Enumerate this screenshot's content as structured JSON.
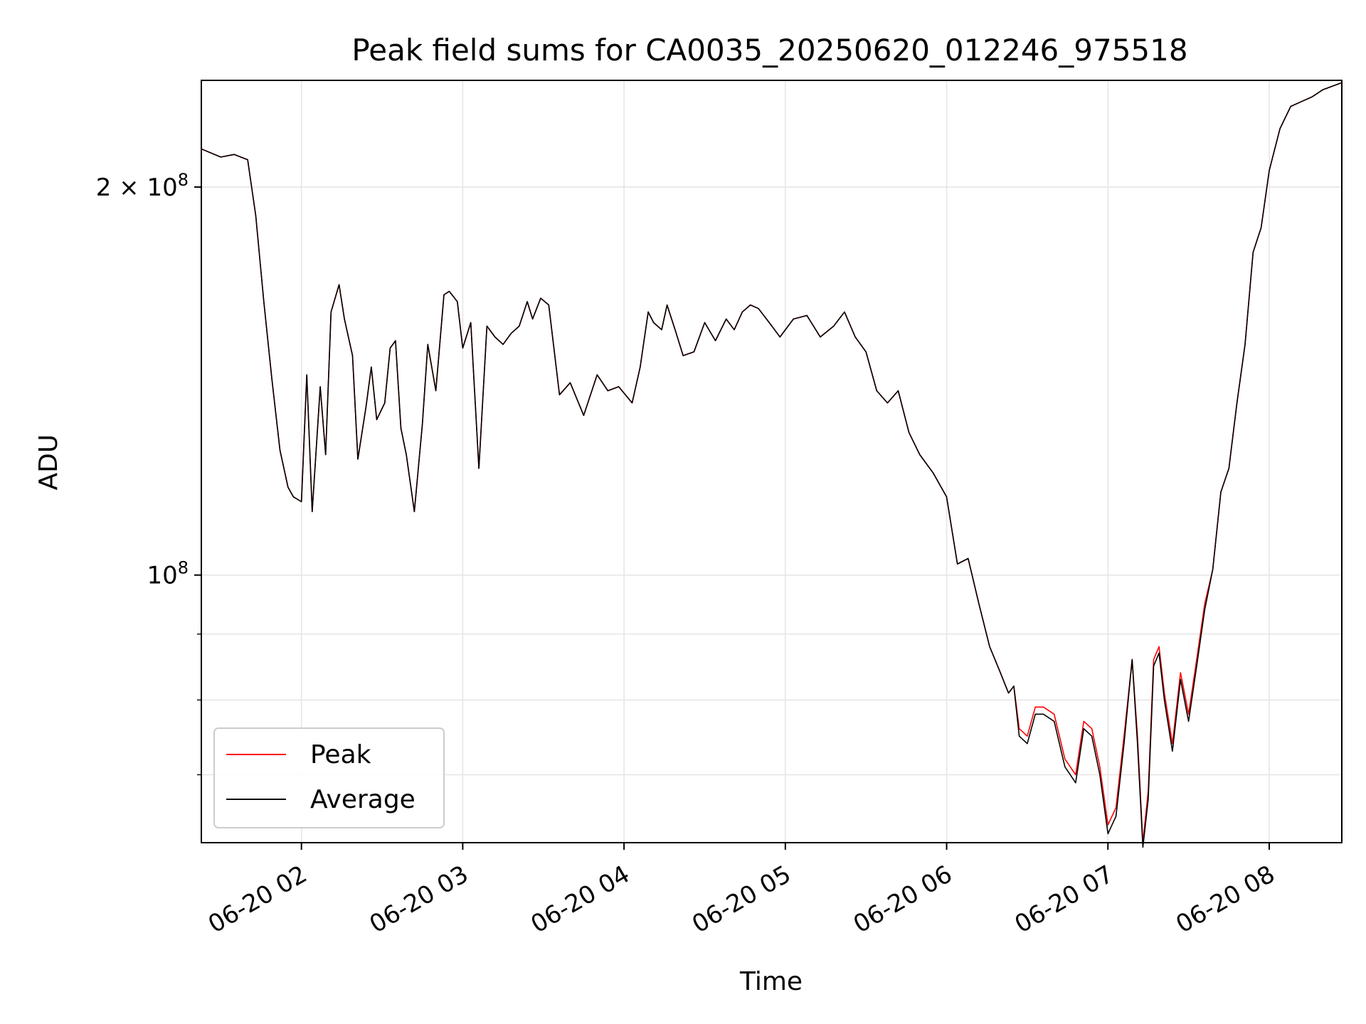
{
  "chart_data": {
    "type": "line",
    "title": "Peak field sums for CA0035_20250620_012246_975518",
    "xlabel": "Time",
    "ylabel": "ADU",
    "x_scale": "time",
    "y_scale": "log",
    "xlim": [
      "2025-06-20 01:22:46",
      "2025-06-20 08:27:00"
    ],
    "ylim": [
      62000000,
      242000000
    ],
    "x_ticks": [
      {
        "value": "2025-06-20 02:00",
        "label": "06-20 02"
      },
      {
        "value": "2025-06-20 03:00",
        "label": "06-20 03"
      },
      {
        "value": "2025-06-20 04:00",
        "label": "06-20 04"
      },
      {
        "value": "2025-06-20 05:00",
        "label": "06-20 05"
      },
      {
        "value": "2025-06-20 06:00",
        "label": "06-20 06"
      },
      {
        "value": "2025-06-20 07:00",
        "label": "06-20 07"
      },
      {
        "value": "2025-06-20 08:00",
        "label": "06-20 08"
      }
    ],
    "y_major_ticks": [
      {
        "value": 100000000,
        "label_base": "10",
        "label_exp": "8"
      },
      {
        "value": 200000000,
        "label_base": "2 × 10",
        "label_exp": "8"
      }
    ],
    "y_minor_ticks": [
      60000000,
      70000000,
      80000000,
      90000000
    ],
    "grid": true,
    "legend_position": "lower-left",
    "x": [
      "2025-06-20 01:23",
      "2025-06-20 01:30",
      "2025-06-20 01:35",
      "2025-06-20 01:40",
      "2025-06-20 01:43",
      "2025-06-20 01:46",
      "2025-06-20 01:49",
      "2025-06-20 01:52",
      "2025-06-20 01:55",
      "2025-06-20 01:57",
      "2025-06-20 02:00",
      "2025-06-20 02:02",
      "2025-06-20 02:04",
      "2025-06-20 02:07",
      "2025-06-20 02:09",
      "2025-06-20 02:11",
      "2025-06-20 02:14",
      "2025-06-20 02:16",
      "2025-06-20 02:19",
      "2025-06-20 02:21",
      "2025-06-20 02:24",
      "2025-06-20 02:26",
      "2025-06-20 02:28",
      "2025-06-20 02:31",
      "2025-06-20 02:33",
      "2025-06-20 02:35",
      "2025-06-20 02:37",
      "2025-06-20 02:39",
      "2025-06-20 02:42",
      "2025-06-20 02:45",
      "2025-06-20 02:47",
      "2025-06-20 02:50",
      "2025-06-20 02:53",
      "2025-06-20 02:55",
      "2025-06-20 02:58",
      "2025-06-20 03:00",
      "2025-06-20 03:03",
      "2025-06-20 03:06",
      "2025-06-20 03:09",
      "2025-06-20 03:12",
      "2025-06-20 03:15",
      "2025-06-20 03:18",
      "2025-06-20 03:21",
      "2025-06-20 03:24",
      "2025-06-20 03:26",
      "2025-06-20 03:29",
      "2025-06-20 03:32",
      "2025-06-20 03:36",
      "2025-06-20 03:40",
      "2025-06-20 03:45",
      "2025-06-20 03:50",
      "2025-06-20 03:54",
      "2025-06-20 03:58",
      "2025-06-20 04:03",
      "2025-06-20 04:06",
      "2025-06-20 04:09",
      "2025-06-20 04:11",
      "2025-06-20 04:14",
      "2025-06-20 04:16",
      "2025-06-20 04:19",
      "2025-06-20 04:22",
      "2025-06-20 04:26",
      "2025-06-20 04:30",
      "2025-06-20 04:34",
      "2025-06-20 04:38",
      "2025-06-20 04:41",
      "2025-06-20 04:44",
      "2025-06-20 04:47",
      "2025-06-20 04:50",
      "2025-06-20 04:54",
      "2025-06-20 04:58",
      "2025-06-20 05:03",
      "2025-06-20 05:08",
      "2025-06-20 05:13",
      "2025-06-20 05:18",
      "2025-06-20 05:22",
      "2025-06-20 05:26",
      "2025-06-20 05:30",
      "2025-06-20 05:34",
      "2025-06-20 05:38",
      "2025-06-20 05:42",
      "2025-06-20 05:46",
      "2025-06-20 05:50",
      "2025-06-20 05:55",
      "2025-06-20 06:00",
      "2025-06-20 06:04",
      "2025-06-20 06:08",
      "2025-06-20 06:12",
      "2025-06-20 06:16",
      "2025-06-20 06:20",
      "2025-06-20 06:23",
      "2025-06-20 06:25",
      "2025-06-20 06:27",
      "2025-06-20 06:30",
      "2025-06-20 06:33",
      "2025-06-20 06:36",
      "2025-06-20 06:40",
      "2025-06-20 06:44",
      "2025-06-20 06:48",
      "2025-06-20 06:51",
      "2025-06-20 06:54",
      "2025-06-20 06:57",
      "2025-06-20 07:00",
      "2025-06-20 07:03",
      "2025-06-20 07:06",
      "2025-06-20 07:09",
      "2025-06-20 07:11",
      "2025-06-20 07:13",
      "2025-06-20 07:15",
      "2025-06-20 07:17",
      "2025-06-20 07:19",
      "2025-06-20 07:21",
      "2025-06-20 07:24",
      "2025-06-20 07:27",
      "2025-06-20 07:30",
      "2025-06-20 07:33",
      "2025-06-20 07:36",
      "2025-06-20 07:39",
      "2025-06-20 07:42",
      "2025-06-20 07:45",
      "2025-06-20 07:48",
      "2025-06-20 07:51",
      "2025-06-20 07:54",
      "2025-06-20 07:57",
      "2025-06-20 08:00",
      "2025-06-20 08:04",
      "2025-06-20 08:08",
      "2025-06-20 08:12",
      "2025-06-20 08:16",
      "2025-06-20 08:20",
      "2025-06-20 08:27"
    ],
    "series": [
      {
        "name": "Peak",
        "color": "#ff0000",
        "values": [
          214000000,
          211000000,
          212000000,
          210000000,
          190000000,
          163000000,
          142000000,
          125000000,
          117000000,
          115000000,
          114000000,
          143000000,
          112000000,
          140000000,
          124000000,
          160000000,
          168000000,
          158000000,
          148000000,
          123000000,
          135000000,
          145000000,
          132000000,
          136000000,
          150000000,
          152000000,
          130000000,
          124000000,
          112000000,
          131000000,
          151000000,
          139000000,
          165000000,
          166000000,
          163000000,
          150000000,
          157000000,
          121000000,
          156000000,
          153000000,
          151000000,
          154000000,
          156000000,
          163000000,
          158000000,
          164000000,
          162000000,
          138000000,
          141000000,
          133000000,
          143000000,
          139000000,
          140000000,
          136000000,
          145000000,
          160000000,
          157000000,
          155000000,
          162000000,
          155000000,
          148000000,
          149000000,
          157000000,
          152000000,
          158000000,
          155000000,
          160000000,
          162000000,
          161000000,
          157000000,
          153000000,
          158000000,
          159000000,
          153000000,
          156000000,
          160000000,
          153000000,
          149000000,
          139000000,
          136000000,
          139000000,
          129000000,
          124000000,
          120000000,
          115000000,
          102000000,
          103000000,
          95000000,
          88000000,
          84000000,
          81000000,
          82000000,
          76000000,
          75000000,
          79000000,
          79000000,
          78000000,
          72000000,
          70000000,
          77000000,
          76000000,
          71000000,
          64000000,
          66000000,
          75000000,
          86000000,
          75000000,
          62000000,
          68000000,
          86000000,
          88000000,
          81000000,
          74000000,
          84000000,
          78000000,
          86000000,
          95000000,
          101000000,
          116000000,
          121000000,
          136000000,
          151000000,
          178000000,
          186000000,
          206000000,
          222000000,
          231000000,
          233000000,
          235000000,
          238000000,
          241000000
        ]
      },
      {
        "name": "Average",
        "color": "#000000",
        "values": [
          214000000,
          211000000,
          212000000,
          210000000,
          190000000,
          163000000,
          142000000,
          125000000,
          117000000,
          115000000,
          114000000,
          143000000,
          112000000,
          140000000,
          124000000,
          160000000,
          168000000,
          158000000,
          148000000,
          123000000,
          135000000,
          145000000,
          132000000,
          136000000,
          150000000,
          152000000,
          130000000,
          124000000,
          112000000,
          131000000,
          151000000,
          139000000,
          165000000,
          166000000,
          163000000,
          150000000,
          157000000,
          121000000,
          156000000,
          153000000,
          151000000,
          154000000,
          156000000,
          163000000,
          158000000,
          164000000,
          162000000,
          138000000,
          141000000,
          133000000,
          143000000,
          139000000,
          140000000,
          136000000,
          145000000,
          160000000,
          157000000,
          155000000,
          162000000,
          155000000,
          148000000,
          149000000,
          157000000,
          152000000,
          158000000,
          155000000,
          160000000,
          162000000,
          161000000,
          157000000,
          153000000,
          158000000,
          159000000,
          153000000,
          156000000,
          160000000,
          153000000,
          149000000,
          139000000,
          136000000,
          139000000,
          129000000,
          124000000,
          120000000,
          115000000,
          102000000,
          103000000,
          95000000,
          88000000,
          84000000,
          81000000,
          82000000,
          75000000,
          74000000,
          78000000,
          78000000,
          77000000,
          71000000,
          69000000,
          76000000,
          75000000,
          70000000,
          63000000,
          65000000,
          74000000,
          86000000,
          74000000,
          61500000,
          67000000,
          85000000,
          87000000,
          80000000,
          73000000,
          83000000,
          77000000,
          85000000,
          94000000,
          101000000,
          116000000,
          121000000,
          136000000,
          151000000,
          178000000,
          186000000,
          206000000,
          222000000,
          231000000,
          233000000,
          235000000,
          238000000,
          241000000
        ]
      }
    ]
  }
}
